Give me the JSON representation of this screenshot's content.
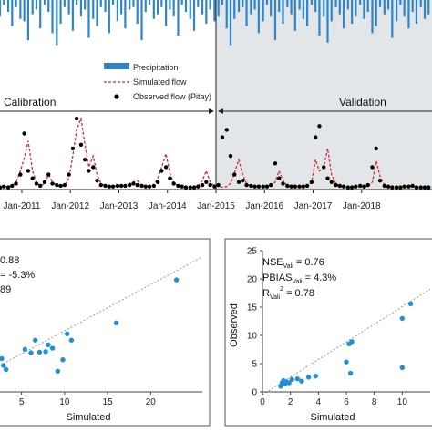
{
  "chart_data": [
    {
      "type": "line",
      "panel": "top",
      "legend": {
        "placement": "top-center",
        "entries": [
          {
            "label": "Precipitation",
            "style": "bar",
            "color": "#2E86C9"
          },
          {
            "label": "Simulated flow",
            "style": "dashed-line",
            "color": "#D6293E"
          },
          {
            "label": "Observed flow (Pitay)",
            "style": "marker",
            "color": "#000000"
          }
        ]
      },
      "periods": [
        {
          "label": "Calibration",
          "start": "2010-07",
          "end": "2015-01"
        },
        {
          "label": "Validation",
          "start": "2015-01",
          "end": "2019-06",
          "shaded": true,
          "shade_color": "#e3e6e8"
        }
      ],
      "x_tick_labels": [
        "Jan-2011",
        "Jan-2012",
        "Jan-2013",
        "Jan-2014",
        "Jan-2015",
        "Jan-2016",
        "Jan-2017",
        "Jan-2018"
      ],
      "x_tick_years": [
        2011,
        2012,
        2013,
        2014,
        2015,
        2016,
        2017,
        2018
      ],
      "xlim": [
        2010.55,
        2019.45
      ],
      "ylim": [
        0,
        1
      ],
      "precip_range": [
        0,
        1
      ],
      "series": [
        {
          "name": "Precipitation",
          "color": "#2E86C9",
          "x": [
            2010.55,
            2010.63,
            2010.72,
            2010.8,
            2010.88,
            2010.97,
            2011.05,
            2011.13,
            2011.22,
            2011.3,
            2011.38,
            2011.47,
            2011.55,
            2011.63,
            2011.72,
            2011.8,
            2011.88,
            2011.97,
            2012.05,
            2012.13,
            2012.22,
            2012.3,
            2012.38,
            2012.47,
            2012.55,
            2012.63,
            2012.72,
            2012.8,
            2012.88,
            2012.97,
            2013.05,
            2013.13,
            2013.22,
            2013.3,
            2013.38,
            2013.47,
            2013.55,
            2013.63,
            2013.72,
            2013.8,
            2013.88,
            2013.97,
            2014.05,
            2014.13,
            2014.22,
            2014.3,
            2014.38,
            2014.47,
            2014.55,
            2014.63,
            2014.72,
            2014.8,
            2014.88,
            2014.97,
            2015.05,
            2015.13,
            2015.22,
            2015.3,
            2015.38,
            2015.47,
            2015.55,
            2015.63,
            2015.72,
            2015.8,
            2015.88,
            2015.97,
            2016.05,
            2016.13,
            2016.22,
            2016.3,
            2016.38,
            2016.47,
            2016.55,
            2016.63,
            2016.72,
            2016.8,
            2016.88,
            2016.97,
            2017.05,
            2017.13,
            2017.22,
            2017.3,
            2017.38,
            2017.47,
            2017.55,
            2017.63,
            2017.72,
            2017.8,
            2017.88,
            2017.97,
            2018.05,
            2018.13,
            2018.22,
            2018.3,
            2018.38,
            2018.47,
            2018.55,
            2018.63,
            2018.72,
            2018.8,
            2018.88,
            2018.97,
            2019.05,
            2019.13,
            2019.22,
            2019.3,
            2019.38
          ],
          "values": [
            0.35,
            0.1,
            0.25,
            0.55,
            0.15,
            0.4,
            0.45,
            0.85,
            0.3,
            0.2,
            0.6,
            0.1,
            0.25,
            0.7,
            0.95,
            0.5,
            0.15,
            0.3,
            0.65,
            0.1,
            0.35,
            0.2,
            0.8,
            0.4,
            0.55,
            0.15,
            0.25,
            0.7,
            0.1,
            0.45,
            0.3,
            0.6,
            0.2,
            0.15,
            0.5,
            0.85,
            0.25,
            0.1,
            0.4,
            0.3,
            0.15,
            0.55,
            0.2,
            0.35,
            0.75,
            0.1,
            0.25,
            0.4,
            0.65,
            0.15,
            0.3,
            0.5,
            0.2,
            0.45,
            0.35,
            0.1,
            0.6,
            0.95,
            0.4,
            0.25,
            0.15,
            0.55,
            0.3,
            0.2,
            0.7,
            0.45,
            0.1,
            0.35,
            0.85,
            0.25,
            0.5,
            0.15,
            0.3,
            0.65,
            0.2,
            0.4,
            0.55,
            0.1,
            0.25,
            0.75,
            0.35,
            0.9,
            0.45,
            0.15,
            0.3,
            0.6,
            0.2,
            0.5,
            0.35,
            0.1,
            0.4,
            0.25,
            0.7,
            0.55,
            0.15,
            0.3,
            0.2,
            0.8,
            0.45,
            0.1,
            0.35,
            0.6,
            0.25,
            0.5,
            0.15,
            0.4,
            0.3
          ]
        },
        {
          "name": "Simulated flow",
          "color": "#D6293E",
          "x": [
            2010.55,
            2010.63,
            2010.72,
            2010.8,
            2010.88,
            2010.97,
            2011.05,
            2011.13,
            2011.22,
            2011.3,
            2011.38,
            2011.47,
            2011.55,
            2011.63,
            2011.72,
            2011.8,
            2011.88,
            2011.97,
            2012.05,
            2012.13,
            2012.22,
            2012.3,
            2012.38,
            2012.47,
            2012.55,
            2012.63,
            2012.72,
            2012.8,
            2012.88,
            2012.97,
            2013.05,
            2013.13,
            2013.22,
            2013.3,
            2013.38,
            2013.47,
            2013.55,
            2013.63,
            2013.72,
            2013.8,
            2013.88,
            2013.97,
            2014.05,
            2014.13,
            2014.22,
            2014.3,
            2014.38,
            2014.47,
            2014.55,
            2014.63,
            2014.72,
            2014.8,
            2014.88,
            2014.97,
            2015.05,
            2015.13,
            2015.22,
            2015.3,
            2015.38,
            2015.47,
            2015.55,
            2015.63,
            2015.72,
            2015.8,
            2015.88,
            2015.97,
            2016.05,
            2016.13,
            2016.22,
            2016.3,
            2016.38,
            2016.47,
            2016.55,
            2016.63,
            2016.72,
            2016.8,
            2016.88,
            2016.97,
            2017.05,
            2017.13,
            2017.22,
            2017.3,
            2017.38,
            2017.47,
            2017.55,
            2017.63,
            2017.72,
            2017.8,
            2017.88,
            2017.97,
            2018.05,
            2018.13,
            2018.22,
            2018.3,
            2018.38,
            2018.47,
            2018.55,
            2018.63,
            2018.72,
            2018.8,
            2018.88,
            2018.97,
            2019.05,
            2019.13,
            2019.22,
            2019.3,
            2019.38
          ],
          "values": [
            0.03,
            0.03,
            0.04,
            0.05,
            0.1,
            0.25,
            0.42,
            0.65,
            0.25,
            0.1,
            0.05,
            0.08,
            0.2,
            0.1,
            0.05,
            0.04,
            0.06,
            0.15,
            0.45,
            0.8,
            0.95,
            0.6,
            0.3,
            0.45,
            0.2,
            0.08,
            0.05,
            0.04,
            0.04,
            0.05,
            0.05,
            0.06,
            0.08,
            0.1,
            0.12,
            0.05,
            0.04,
            0.04,
            0.06,
            0.15,
            0.3,
            0.48,
            0.22,
            0.08,
            0.05,
            0.04,
            0.03,
            0.03,
            0.03,
            0.05,
            0.12,
            0.25,
            0.1,
            0.05,
            0.04,
            0.03,
            0.04,
            0.08,
            0.22,
            0.4,
            0.2,
            0.08,
            0.04,
            0.04,
            0.04,
            0.04,
            0.04,
            0.05,
            0.1,
            0.25,
            0.12,
            0.05,
            0.04,
            0.04,
            0.04,
            0.05,
            0.04,
            0.1,
            0.4,
            0.25,
            0.3,
            0.55,
            0.2,
            0.08,
            0.04,
            0.04,
            0.03,
            0.03,
            0.04,
            0.04,
            0.03,
            0.04,
            0.1,
            0.38,
            0.18,
            0.06,
            0.04,
            0.03,
            0.03,
            0.03,
            0.03,
            0.04,
            0.05,
            0.03,
            0.03,
            0.03,
            0.03
          ]
        },
        {
          "name": "Observed flow (Pitay)",
          "color": "#000000",
          "x": [
            2010.55,
            2010.63,
            2010.72,
            2010.8,
            2010.88,
            2010.97,
            2011.05,
            2011.13,
            2011.22,
            2011.3,
            2011.38,
            2011.47,
            2011.55,
            2011.63,
            2011.72,
            2011.8,
            2011.88,
            2011.97,
            2012.05,
            2012.13,
            2012.22,
            2012.3,
            2012.38,
            2012.47,
            2012.55,
            2012.63,
            2012.72,
            2012.8,
            2012.88,
            2012.97,
            2013.05,
            2013.13,
            2013.22,
            2013.3,
            2013.38,
            2013.47,
            2013.55,
            2013.63,
            2013.72,
            2013.8,
            2013.88,
            2013.97,
            2014.05,
            2014.13,
            2014.22,
            2014.3,
            2014.38,
            2014.47,
            2014.55,
            2014.63,
            2014.72,
            2014.8,
            2014.88,
            2014.97,
            2015.05,
            2015.13,
            2015.22,
            2015.3,
            2015.38,
            2015.47,
            2015.55,
            2015.63,
            2015.72,
            2015.8,
            2015.88,
            2015.97,
            2016.05,
            2016.13,
            2016.22,
            2016.3,
            2016.38,
            2016.47,
            2016.55,
            2016.63,
            2016.72,
            2016.8,
            2016.88,
            2016.97,
            2017.05,
            2017.13,
            2017.22,
            2017.3,
            2017.38,
            2017.47,
            2017.55,
            2017.63,
            2017.72,
            2017.8,
            2017.88,
            2017.97,
            2018.05,
            2018.13,
            2018.22,
            2018.3,
            2018.38,
            2018.47,
            2018.55,
            2018.63,
            2018.72,
            2018.8,
            2018.88,
            2018.97,
            2019.05,
            2019.13,
            2019.22,
            2019.3,
            2019.38
          ],
          "values": [
            0.03,
            0.04,
            0.03,
            0.05,
            0.08,
            0.2,
            0.75,
            0.25,
            0.15,
            0.08,
            0.05,
            0.1,
            0.2,
            0.08,
            0.06,
            0.05,
            0.06,
            0.2,
            0.55,
            0.95,
            0.6,
            0.4,
            0.25,
            0.3,
            0.12,
            0.06,
            0.05,
            0.04,
            0.04,
            0.05,
            0.05,
            0.05,
            0.06,
            0.08,
            0.06,
            0.05,
            0.04,
            0.04,
            0.05,
            0.1,
            0.25,
            0.3,
            0.15,
            0.08,
            0.05,
            0.04,
            0.03,
            0.03,
            0.03,
            0.04,
            0.06,
            0.1,
            0.06,
            0.04,
            0.06,
            0.7,
            0.8,
            0.45,
            0.2,
            0.1,
            0.12,
            0.06,
            0.05,
            0.04,
            0.04,
            0.04,
            0.04,
            0.06,
            0.35,
            0.15,
            0.08,
            0.05,
            0.04,
            0.04,
            0.04,
            0.04,
            0.05,
            0.1,
            0.7,
            0.85,
            0.3,
            0.15,
            0.1,
            0.06,
            0.05,
            0.04,
            0.03,
            0.03,
            0.04,
            0.05,
            0.04,
            0.06,
            0.3,
            0.55,
            0.12,
            0.05,
            0.04,
            0.03,
            0.03,
            0.03,
            0.04,
            0.04,
            0.05,
            0.03,
            0.03,
            0.03,
            0.03
          ]
        }
      ]
    },
    {
      "type": "scatter",
      "panel": "bottom-left",
      "xlabel": "Simulated",
      "ylabel": "",
      "xlim": [
        2.5,
        26
      ],
      "ylim": [
        0,
        23
      ],
      "x_ticks": [
        5,
        10,
        15,
        20
      ],
      "stats": [
        {
          "prefix": "",
          "sub": "",
          "suffix": "0.88"
        },
        {
          "prefix": "",
          "sub": "",
          "suffix": "= -5.3%"
        },
        {
          "prefix": "",
          "sub": "",
          "suffix": "89"
        }
      ],
      "trendline": {
        "x": [
          2.5,
          26
        ],
        "y": [
          4.6,
          23.5
        ],
        "style": "dotted",
        "color": "#9a9a9a"
      },
      "point_color": "#1f8fd6",
      "points": [
        {
          "x": 2.7,
          "y": 5.8
        },
        {
          "x": 2.9,
          "y": 4.6
        },
        {
          "x": 3.2,
          "y": 3.9
        },
        {
          "x": 5.4,
          "y": 7.4
        },
        {
          "x": 6.1,
          "y": 6.8
        },
        {
          "x": 6.6,
          "y": 9.0
        },
        {
          "x": 7.1,
          "y": 6.9
        },
        {
          "x": 7.8,
          "y": 7.0
        },
        {
          "x": 8.1,
          "y": 8.2
        },
        {
          "x": 8.6,
          "y": 7.6
        },
        {
          "x": 9.2,
          "y": 3.6
        },
        {
          "x": 9.8,
          "y": 5.6
        },
        {
          "x": 10.3,
          "y": 10.1
        },
        {
          "x": 10.8,
          "y": 9.0
        },
        {
          "x": 16.0,
          "y": 12.0
        },
        {
          "x": 23.0,
          "y": 19.5
        }
      ]
    },
    {
      "type": "scatter",
      "panel": "bottom-right",
      "xlabel": "Simulated",
      "ylabel": "Observed",
      "xlim": [
        0,
        12
      ],
      "ylim": [
        0,
        25
      ],
      "x_ticks": [
        0,
        2,
        4,
        6,
        8,
        10
      ],
      "y_ticks": [
        0,
        5,
        10,
        15,
        20,
        25
      ],
      "stats": [
        {
          "prefix": "NSE",
          "sub": "Vali",
          "suffix": " = 0.76"
        },
        {
          "prefix": "PBIAS",
          "sub": "Vali",
          "suffix": " = 4.3%"
        },
        {
          "prefix": "R",
          "sub": "Vali",
          "sup": "2",
          "suffix": " = 0.78"
        }
      ],
      "trendline": {
        "x": [
          0,
          12
        ],
        "y": [
          -0.5,
          18.2
        ],
        "style": "dotted",
        "color": "#9a9a9a"
      },
      "point_color": "#1f8fd6",
      "points": [
        {
          "x": 1.3,
          "y": 1.0
        },
        {
          "x": 1.4,
          "y": 1.6
        },
        {
          "x": 1.5,
          "y": 2.0
        },
        {
          "x": 1.6,
          "y": 1.4
        },
        {
          "x": 1.7,
          "y": 1.8
        },
        {
          "x": 1.9,
          "y": 1.6
        },
        {
          "x": 2.1,
          "y": 2.2
        },
        {
          "x": 2.5,
          "y": 2.3
        },
        {
          "x": 2.8,
          "y": 1.9
        },
        {
          "x": 3.3,
          "y": 2.6
        },
        {
          "x": 3.8,
          "y": 2.8
        },
        {
          "x": 6.0,
          "y": 5.3
        },
        {
          "x": 6.2,
          "y": 8.5
        },
        {
          "x": 6.4,
          "y": 8.9
        },
        {
          "x": 6.3,
          "y": 3.3
        },
        {
          "x": 10.0,
          "y": 13.0
        },
        {
          "x": 10.0,
          "y": 4.3
        },
        {
          "x": 10.6,
          "y": 15.6
        }
      ]
    }
  ]
}
